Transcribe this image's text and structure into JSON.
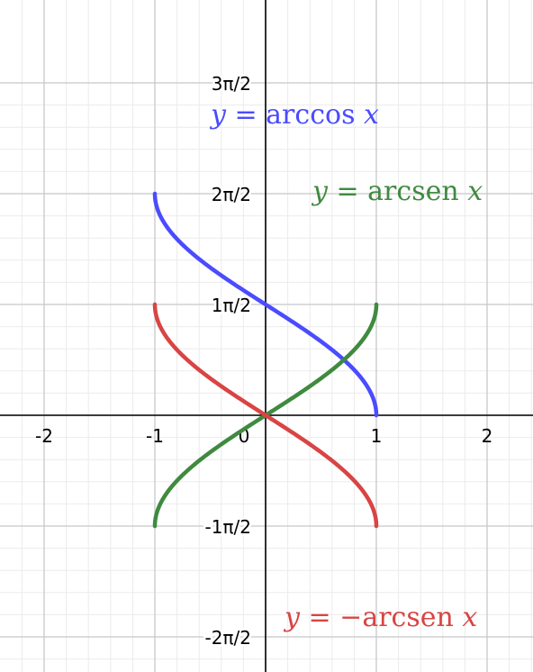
{
  "chart_data": {
    "type": "line",
    "title": "",
    "xlabel": "",
    "ylabel": "",
    "xlim": [
      -2.4,
      2.4
    ],
    "ylim": [
      -2.3,
      3.8
    ],
    "grid": true,
    "x_ticks": [
      {
        "value": -2,
        "label": "-2"
      },
      {
        "value": -1,
        "label": "-1"
      },
      {
        "value": 0,
        "label": "0"
      },
      {
        "value": 1,
        "label": "1"
      },
      {
        "value": 2,
        "label": "2"
      }
    ],
    "y_ticks": [
      {
        "value": 3,
        "label": "3π/2"
      },
      {
        "value": 2,
        "label": "2π/2"
      },
      {
        "value": 1,
        "label": "1π/2"
      },
      {
        "value": -1,
        "label": "-1π/2"
      },
      {
        "value": -2,
        "label": "-2π/2"
      }
    ],
    "series": [
      {
        "name": "y = arccos x",
        "color": "#4b4bff",
        "function": "arccos",
        "label_parts": {
          "lhs": "y",
          "eq": " = ",
          "op": "arccos ",
          "arg": "x"
        }
      },
      {
        "name": "y = arcsen x",
        "color": "#3f8a3f",
        "function": "arcsin",
        "label_parts": {
          "lhs": "y",
          "eq": " = ",
          "op": "arcsen ",
          "arg": "x"
        }
      },
      {
        "name": "y = −arcsen x",
        "color": "#d94444",
        "function": "neg_arcsin",
        "label_parts": {
          "lhs": "y",
          "eq": " = −",
          "op": "arcsen ",
          "arg": "x"
        }
      }
    ]
  }
}
